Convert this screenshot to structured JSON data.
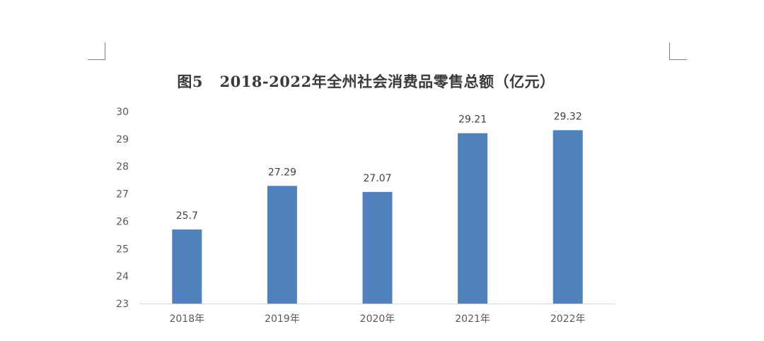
{
  "chart_data": {
    "type": "bar",
    "title": "图5   2018-2022年全州社会消费品零售总额（亿元）",
    "categories": [
      "2018年",
      "2019年",
      "2020年",
      "2021年",
      "2022年"
    ],
    "values": [
      25.7,
      27.29,
      27.07,
      29.21,
      29.32
    ],
    "data_labels": [
      "25.7",
      "27.29",
      "27.07",
      "29.21",
      "29.32"
    ],
    "ylim": [
      23,
      30
    ],
    "yticks": [
      23,
      24,
      25,
      26,
      27,
      28,
      29,
      30
    ],
    "xlabel": "",
    "ylabel": "",
    "grid": false,
    "legend": "none",
    "bar_color": "#4f81bd"
  }
}
